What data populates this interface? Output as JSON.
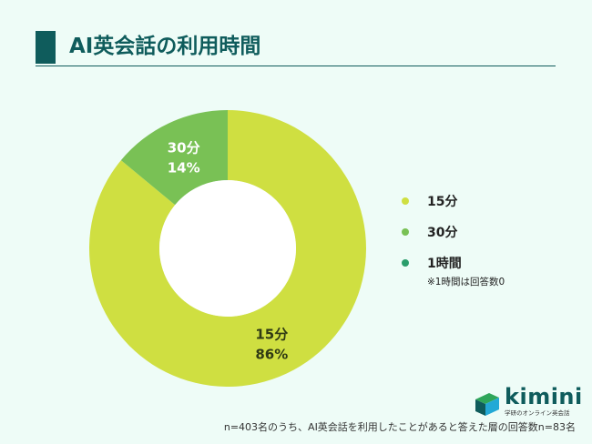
{
  "header": {
    "title": "AI英会話の利用時間"
  },
  "chart_data": {
    "type": "pie",
    "categories": [
      "15分",
      "30分",
      "1時間"
    ],
    "values": [
      86,
      14,
      0
    ],
    "colors": [
      "#cfdf41",
      "#79c155",
      "#2a9d6b"
    ],
    "slice_labels": [
      {
        "category": "15分",
        "percent": "86%"
      },
      {
        "category": "30分",
        "percent": "14%"
      }
    ],
    "legend_placement": "right",
    "note": "※1時間は回答数0",
    "title": "",
    "xlabel": "",
    "ylabel": ""
  },
  "footer": {
    "footnote": "n=403名のうち、AI英会話を利用したことがあると答えた層の回答数n=83名",
    "logo_word": "kimini",
    "logo_tagline": "学研のオンライン英会話"
  }
}
